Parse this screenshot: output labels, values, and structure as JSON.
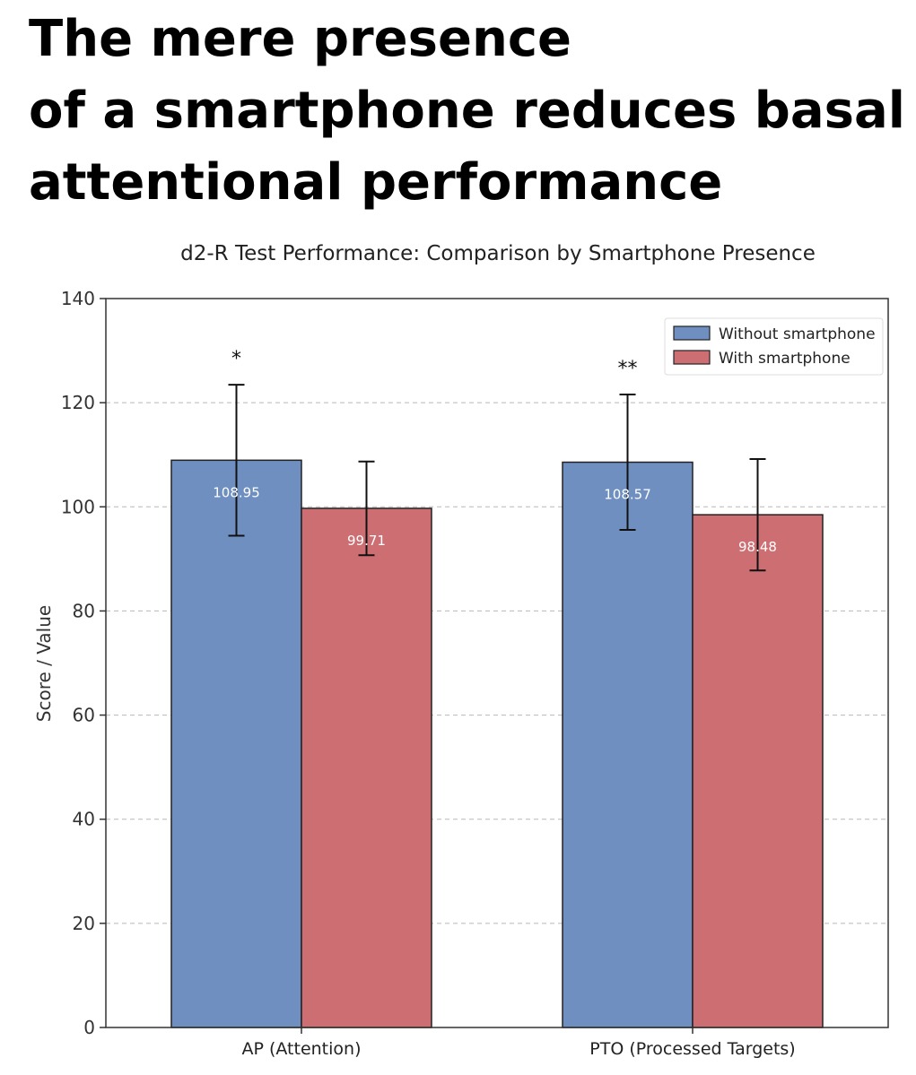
{
  "headline": {
    "line1": "The mere presence",
    "line2": "of a smartphone reduces basal",
    "line3": "attentional performance"
  },
  "chart_data": {
    "type": "bar",
    "title": "d2-R Test Performance: Comparison by Smartphone Presence",
    "xlabel": "",
    "ylabel": "Score / Value",
    "ylim": [
      0,
      140
    ],
    "yticks": [
      0,
      20,
      40,
      60,
      80,
      100,
      120,
      140
    ],
    "grid": true,
    "legend_position": "top-right",
    "categories": [
      "AP (Attention)",
      "PTO (Processed Targets)"
    ],
    "series": [
      {
        "name": "Without smartphone",
        "color": "#6e8fc0",
        "values": [
          108.95,
          108.57
        ],
        "errors": [
          14.5,
          13.0
        ],
        "labels": [
          "108.95",
          "108.57"
        ]
      },
      {
        "name": "With smartphone",
        "color": "#cd6e73",
        "values": [
          99.71,
          98.48
        ],
        "errors": [
          9.0,
          10.7
        ],
        "labels": [
          "99.71",
          "98.48"
        ]
      }
    ],
    "significance": [
      "*",
      "**"
    ]
  }
}
